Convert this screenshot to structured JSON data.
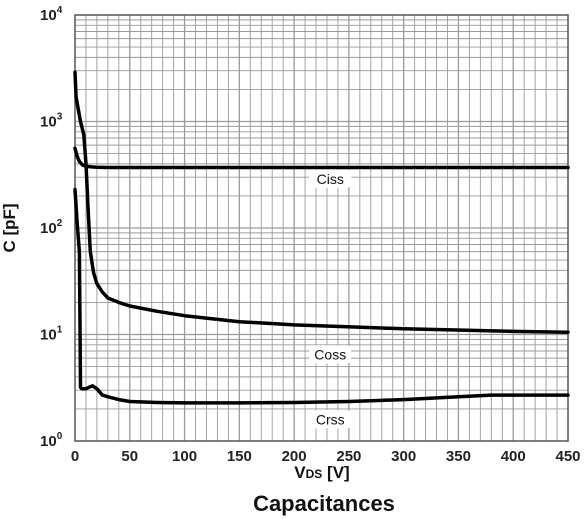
{
  "chart_data": {
    "type": "line",
    "title": "Capacitances",
    "xlabel_main": "V",
    "xlabel_sub": "DS",
    "xlabel_unit": " [V]",
    "ylabel": "C [pF]",
    "xlim": [
      0,
      450
    ],
    "ylim": [
      1,
      10000
    ],
    "yscale": "log",
    "grid": true,
    "x_ticks": [
      "0",
      "50",
      "100",
      "150",
      "200",
      "250",
      "300",
      "350",
      "400",
      "450"
    ],
    "y_ticks": [
      {
        "base": "10",
        "exp": "0"
      },
      {
        "base": "10",
        "exp": "1"
      },
      {
        "base": "10",
        "exp": "2"
      },
      {
        "base": "10",
        "exp": "3"
      },
      {
        "base": "10",
        "exp": "4"
      }
    ],
    "series": [
      {
        "name": "Ciss",
        "x": [
          0,
          2,
          4,
          7,
          10,
          15,
          20,
          30,
          50,
          100,
          200,
          300,
          400,
          450
        ],
        "y": [
          560,
          470,
          420,
          390,
          380,
          375,
          372,
          370,
          370,
          370,
          370,
          370,
          370,
          370
        ]
      },
      {
        "name": "Coss",
        "x": [
          0,
          1,
          3,
          5,
          8,
          10,
          12,
          14,
          17,
          20,
          25,
          30,
          40,
          50,
          75,
          100,
          150,
          200,
          300,
          400,
          450
        ],
        "y": [
          2900,
          1700,
          1300,
          1000,
          750,
          400,
          150,
          60,
          38,
          30,
          25,
          22,
          20,
          18.5,
          16.5,
          15,
          13.2,
          12.3,
          11.3,
          10.7,
          10.5
        ]
      },
      {
        "name": "Crss",
        "x": [
          0,
          2,
          4,
          5,
          6,
          10,
          13,
          16,
          20,
          25,
          30,
          40,
          50,
          75,
          100,
          150,
          200,
          250,
          300,
          350,
          380,
          400,
          450
        ],
        "y": [
          230,
          110,
          60,
          3.2,
          3.1,
          3.1,
          3.2,
          3.3,
          3.1,
          2.7,
          2.6,
          2.45,
          2.35,
          2.3,
          2.28,
          2.28,
          2.3,
          2.35,
          2.45,
          2.6,
          2.7,
          2.7,
          2.7
        ]
      }
    ],
    "series_labels": [
      {
        "text": "Ciss",
        "x": 233,
        "y": 290
      },
      {
        "text": "Coss",
        "x": 233,
        "y": 6.5
      },
      {
        "text": "Crss",
        "x": 233,
        "y": 1.6
      }
    ]
  }
}
